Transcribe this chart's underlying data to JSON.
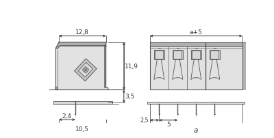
{
  "bg": "#ffffff",
  "lc": "#555555",
  "dc": "#333333",
  "gray_light": "#d8d8d8",
  "gray_mid": "#b0b0b0",
  "gray_dark": "#888888",
  "gray_body": "#c8c8c8",
  "gray_fill": "#e2e2e2",
  "fs": 6.5,
  "fs_sm": 5.8,
  "dim_128": "12,8",
  "dim_119": "11,9",
  "dim_35": "3,5",
  "dim_24": "2,4",
  "dim_105": "10,5",
  "dim_a5": "a+5",
  "dim_25": "2,5",
  "dim_5": "5",
  "dim_a": "a"
}
